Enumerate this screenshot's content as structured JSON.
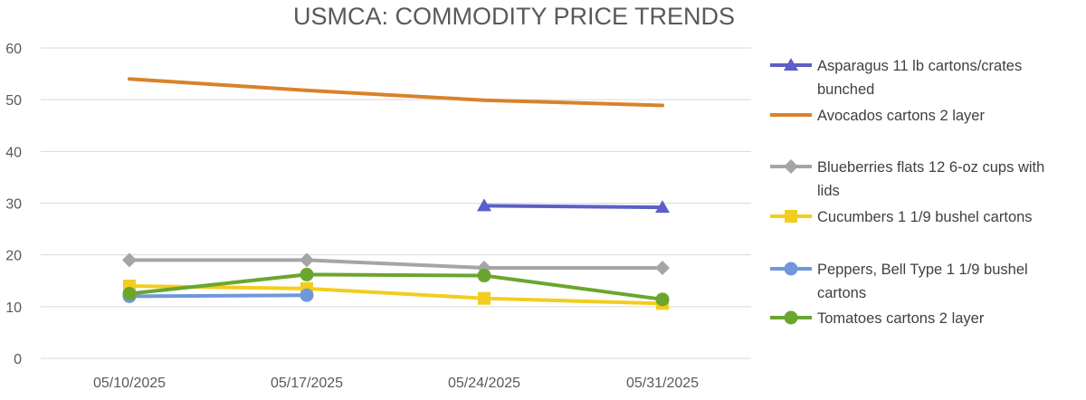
{
  "chart_data": {
    "type": "line",
    "title": "USMCA: COMMODITY PRICE TRENDS",
    "xlabel": "",
    "ylabel": "",
    "ylim": [
      0,
      60
    ],
    "yticks": [
      "0",
      "10",
      "20",
      "30",
      "40",
      "50",
      "60"
    ],
    "categories": [
      "05/10/2025",
      "05/17/2025",
      "05/24/2025",
      "05/31/2025"
    ],
    "grid": true,
    "legend_position": "right",
    "series": [
      {
        "name": "Asparagus 11 lb cartons/crates bunched",
        "legend_lines": [
          "Asparagus 11 lb cartons/crates",
          "bunched"
        ],
        "color": "#5b5fc7",
        "marker": "triangle",
        "values": [
          null,
          null,
          29.5,
          29.2
        ]
      },
      {
        "name": "Avocados cartons 2 layer",
        "legend_lines": [
          "Avocados cartons 2 layer"
        ],
        "color": "#d9822b",
        "marker": "none",
        "values": [
          54,
          51.8,
          49.9,
          48.9
        ]
      },
      {
        "name": "Blueberries flats 12 6-oz cups with lids",
        "legend_lines": [
          "Blueberries flats 12 6-oz cups with",
          "lids"
        ],
        "color": "#a5a5a5",
        "marker": "diamond",
        "values": [
          19,
          19,
          17.5,
          17.5
        ]
      },
      {
        "name": "Cucumbers 1 1/9 bushel cartons",
        "legend_lines": [
          "Cucumbers 1 1/9 bushel cartons"
        ],
        "color": "#f2cd1e",
        "marker": "square",
        "values": [
          14,
          13.5,
          11.6,
          10.6
        ]
      },
      {
        "name": "Peppers, Bell Type 1 1/9 bushel cartons",
        "legend_lines": [
          "Peppers, Bell Type 1 1/9 bushel",
          "cartons"
        ],
        "color": "#6f98d9",
        "marker": "circle",
        "values": [
          12,
          12.2,
          null,
          null
        ]
      },
      {
        "name": "Tomatoes cartons 2 layer",
        "legend_lines": [
          "Tomatoes cartons 2 layer"
        ],
        "color": "#6aa62e",
        "marker": "circle",
        "values": [
          12.5,
          16.2,
          16,
          11.4
        ]
      }
    ]
  }
}
